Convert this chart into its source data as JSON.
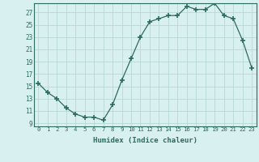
{
  "x": [
    0,
    1,
    2,
    3,
    4,
    5,
    6,
    7,
    8,
    9,
    10,
    11,
    12,
    13,
    14,
    15,
    16,
    17,
    18,
    19,
    20,
    21,
    22,
    23
  ],
  "y": [
    15.5,
    14.0,
    13.0,
    11.5,
    10.5,
    10.0,
    10.0,
    9.5,
    12.0,
    16.0,
    19.5,
    23.0,
    25.5,
    26.0,
    26.5,
    26.5,
    28.0,
    27.5,
    27.5,
    28.5,
    26.5,
    26.0,
    22.5,
    18.0
  ],
  "xlabel": "Humidex (Indice chaleur)",
  "xlim": [
    -0.5,
    23.5
  ],
  "ylim": [
    8.5,
    28.5
  ],
  "yticks": [
    9,
    11,
    13,
    15,
    17,
    19,
    21,
    23,
    25,
    27
  ],
  "xticks": [
    0,
    1,
    2,
    3,
    4,
    5,
    6,
    7,
    8,
    9,
    10,
    11,
    12,
    13,
    14,
    15,
    16,
    17,
    18,
    19,
    20,
    21,
    22,
    23
  ],
  "xtick_labels": [
    "0",
    "1",
    "2",
    "3",
    "4",
    "5",
    "6",
    "7",
    "8",
    "9",
    "10",
    "11",
    "12",
    "13",
    "14",
    "15",
    "16",
    "17",
    "18",
    "19",
    "20",
    "21",
    "22",
    "23"
  ],
  "line_color": "#2d6b5e",
  "marker": "+",
  "marker_size": 4,
  "bg_color": "#d8f0f0",
  "grid_color": "#b8d8d8"
}
